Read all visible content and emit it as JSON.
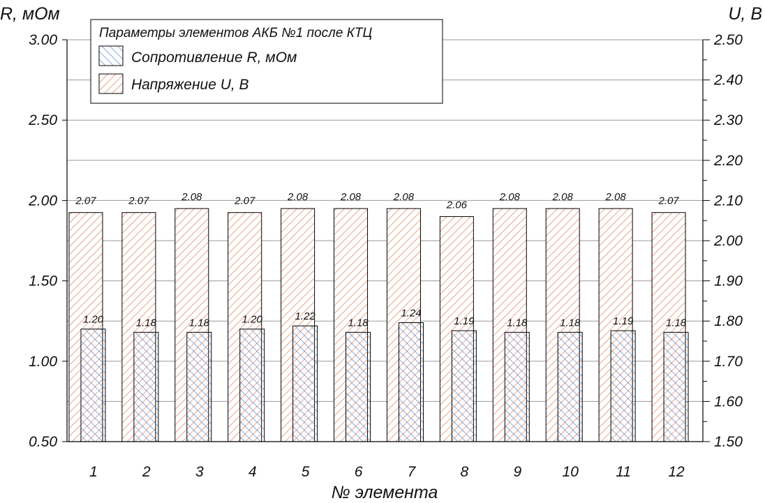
{
  "chart_data": {
    "type": "bar",
    "title": "Параметры элементов АКБ №1 после КТЦ",
    "xlabel": "№ элемента",
    "ylabel_left": "R, мОм",
    "ylabel_right": "U, В",
    "ylim_left": [
      0.5,
      3.0
    ],
    "ylim_right": [
      1.5,
      2.5
    ],
    "categories": [
      "1",
      "2",
      "3",
      "4",
      "5",
      "6",
      "7",
      "8",
      "9",
      "10",
      "11",
      "12"
    ],
    "left_ticks": [
      "0.50",
      "1.00",
      "1.50",
      "2.00",
      "2.50",
      "3.00"
    ],
    "right_ticks": [
      "1.50",
      "1.60",
      "1.70",
      "1.80",
      "1.90",
      "2.00",
      "2.10",
      "2.20",
      "2.30",
      "2.40",
      "2.50"
    ],
    "grid": true,
    "legend_position": "top-left",
    "series": [
      {
        "name": "Сопротивление R, мОм",
        "axis": "left",
        "color": "#4a7fd1",
        "values": [
          1.2,
          1.18,
          1.18,
          1.2,
          1.22,
          1.18,
          1.24,
          1.19,
          1.18,
          1.18,
          1.19,
          1.18
        ],
        "labels": [
          "1.20",
          "1.18",
          "1.18",
          "1.20",
          "1.22",
          "1.18",
          "1.24",
          "1.19",
          "1.18",
          "1.18",
          "1.19",
          "1.18"
        ]
      },
      {
        "name": "Напряжение U, В",
        "axis": "right",
        "color": "#e4734a",
        "values": [
          2.07,
          2.07,
          2.08,
          2.07,
          2.08,
          2.08,
          2.08,
          2.06,
          2.08,
          2.08,
          2.08,
          2.07
        ],
        "labels": [
          "2.07",
          "2.07",
          "2.08",
          "2.07",
          "2.08",
          "2.08",
          "2.08",
          "2.06",
          "2.08",
          "2.08",
          "2.08",
          "2.07"
        ]
      }
    ]
  }
}
